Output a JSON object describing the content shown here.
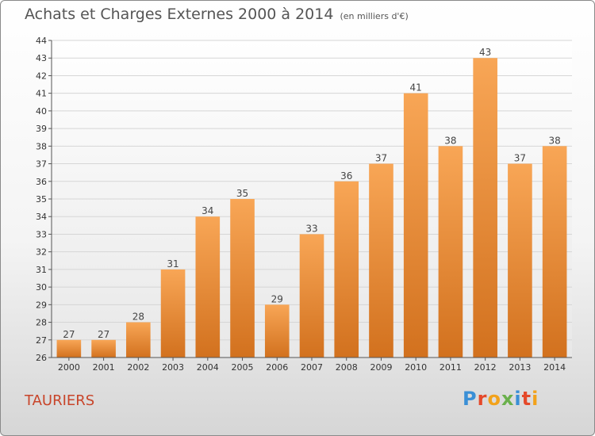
{
  "title": "Achats et Charges Externes 2000 à 2014",
  "subtitle": "(en milliers d'€)",
  "commune": "TAURIERS",
  "logo": {
    "text": "Proxiti",
    "colors": [
      "#3a8fd6",
      "#e5492a",
      "#f2a21b",
      "#6ab04c",
      "#3a8fd6",
      "#e5492a",
      "#f2a21b"
    ]
  },
  "chart_data": {
    "type": "bar",
    "categories": [
      "2000",
      "2001",
      "2002",
      "2003",
      "2004",
      "2005",
      "2006",
      "2007",
      "2008",
      "2009",
      "2010",
      "2011",
      "2012",
      "2013",
      "2014"
    ],
    "values": [
      27,
      27,
      28,
      31,
      34,
      35,
      29,
      33,
      36,
      37,
      41,
      38,
      43,
      37,
      38
    ],
    "ylim": [
      26,
      44
    ],
    "yticks": [
      26,
      27,
      28,
      29,
      30,
      31,
      32,
      33,
      34,
      35,
      36,
      37,
      38,
      39,
      40,
      41,
      42,
      43,
      44
    ],
    "grid": true,
    "bar_color_top": "#f8a656",
    "bar_color_bottom": "#d2711e",
    "data_labels": true
  }
}
